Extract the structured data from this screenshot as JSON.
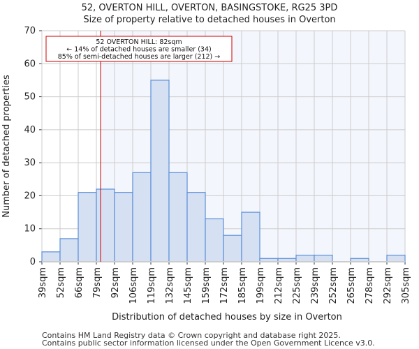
{
  "chart_data": {
    "type": "bar",
    "title": "52, OVERTON HILL, OVERTON, BASINGSTOKE, RG25 3PD",
    "subtitle": "Size of property relative to detached houses in Overton",
    "xlabel": "Distribution of detached houses by size in Overton",
    "ylabel": "Number of detached properties",
    "ylim": [
      0,
      70
    ],
    "yticks": [
      0,
      10,
      20,
      30,
      40,
      50,
      60,
      70
    ],
    "bin_edges": [
      39,
      52,
      66,
      79,
      92,
      106,
      119,
      132,
      145,
      159,
      172,
      185,
      199,
      212,
      225,
      239,
      252,
      265,
      278,
      292,
      305
    ],
    "xtick_labels": [
      "39sqm",
      "52sqm",
      "66sqm",
      "79sqm",
      "92sqm",
      "106sqm",
      "119sqm",
      "132sqm",
      "145sqm",
      "159sqm",
      "172sqm",
      "185sqm",
      "199sqm",
      "212sqm",
      "225sqm",
      "239sqm",
      "252sqm",
      "265sqm",
      "278sqm",
      "292sqm",
      "305sqm"
    ],
    "values": [
      3,
      7,
      21,
      22,
      21,
      27,
      55,
      27,
      21,
      13,
      8,
      15,
      1,
      1,
      2,
      2,
      0,
      1,
      0,
      2
    ],
    "grid": true,
    "marker": {
      "value": 82,
      "color": "#cc0000"
    },
    "annotation": [
      "52 OVERTON HILL: 82sqm",
      "← 14% of detached houses are smaller (34)",
      "85% of semi-detached houses are larger (212) →"
    ],
    "colors": {
      "bar_fill": "#d6e0f3",
      "bar_edge": "#5a8fd8",
      "highlight_bg": "#f3f6fd"
    }
  },
  "footer": [
    "Contains HM Land Registry data © Crown copyright and database right 2025.",
    "Contains public sector information licensed under the Open Government Licence v3.0."
  ]
}
